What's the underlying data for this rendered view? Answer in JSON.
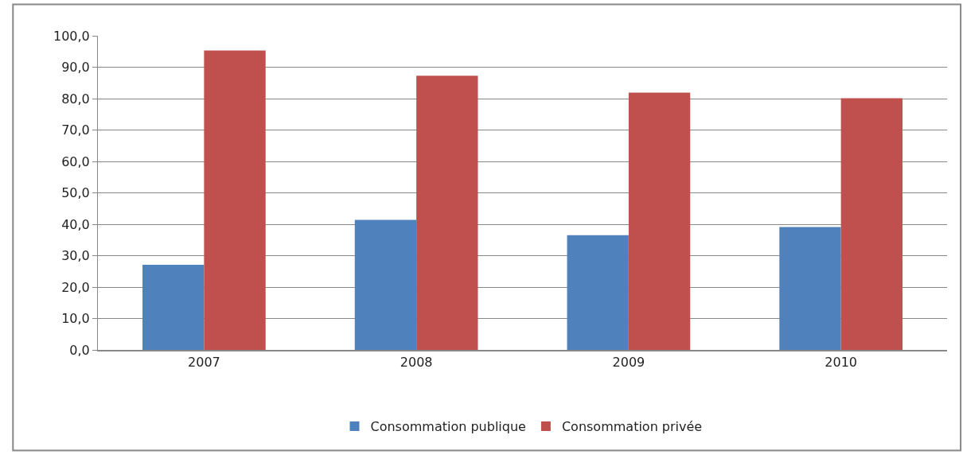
{
  "chart_data": {
    "type": "bar",
    "categories": [
      "2007",
      "2008",
      "2009",
      "2010"
    ],
    "series": [
      {
        "name": "Consommation publique",
        "color": "#4f81bd",
        "values": [
          27.1,
          41.4,
          36.5,
          39.1
        ]
      },
      {
        "name": "Consommation privée",
        "color": "#c0504d",
        "values": [
          95.3,
          87.3,
          81.9,
          80.1
        ]
      }
    ],
    "ylim": [
      0,
      100
    ],
    "yticks": [
      {
        "value": 0,
        "label": "0,0"
      },
      {
        "value": 10,
        "label": "10,0"
      },
      {
        "value": 20,
        "label": "20,0"
      },
      {
        "value": 30,
        "label": "30,0"
      },
      {
        "value": 40,
        "label": "40,0"
      },
      {
        "value": 50,
        "label": "50,0"
      },
      {
        "value": 60,
        "label": "60,0"
      },
      {
        "value": 70,
        "label": "70,0"
      },
      {
        "value": 80,
        "label": "80,0"
      },
      {
        "value": 90,
        "label": "90,0"
      },
      {
        "value": 100,
        "label": "100,0"
      }
    ],
    "grid": "y",
    "legend": "bottom"
  }
}
